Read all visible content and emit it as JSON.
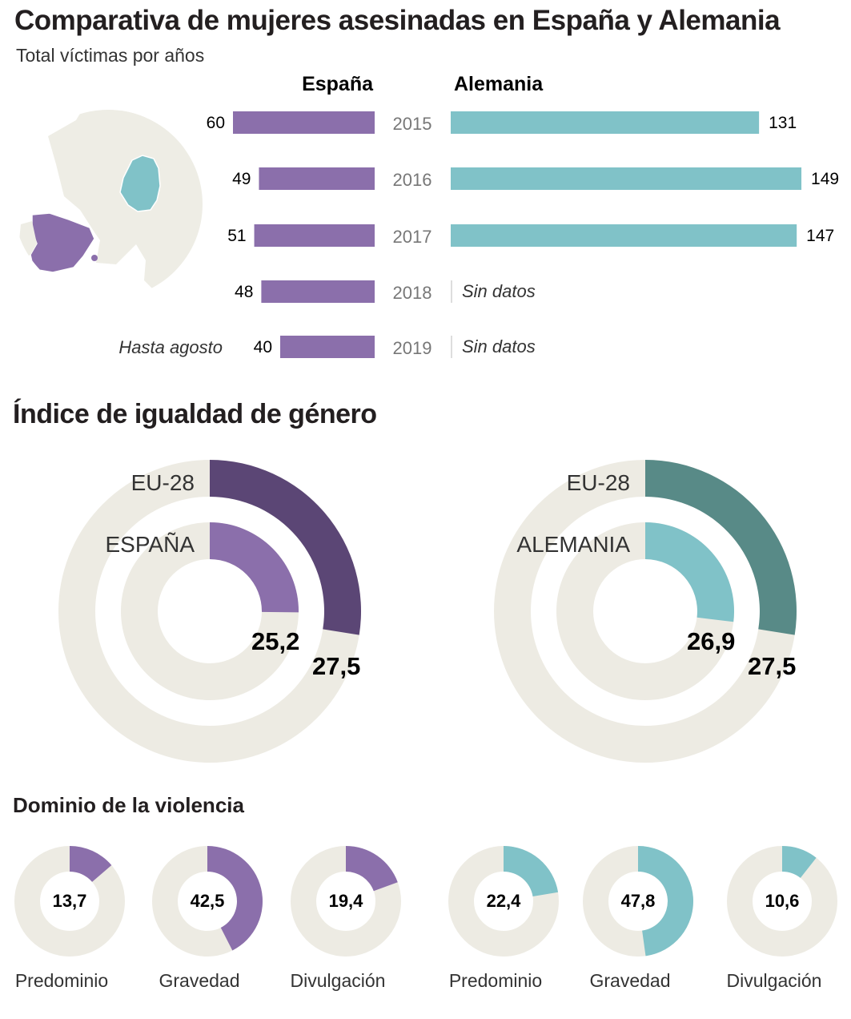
{
  "title": "Comparativa de mujeres asesinadas en España y Alemania",
  "subtitle": "Total víctimas por años",
  "colors": {
    "spain": "#8b6fab",
    "germany": "#80c2c8",
    "spain_dark": "#5b4675",
    "germany_dark": "#588a87",
    "track": "#edebe3",
    "map_land": "#eeede5"
  },
  "chart_data": [
    {
      "type": "bar",
      "name": "victimas",
      "columns": [
        "España",
        "Alemania"
      ],
      "categories": [
        "2015",
        "2016",
        "2017",
        "2018",
        "2019"
      ],
      "series": [
        {
          "name": "España",
          "values": [
            60,
            49,
            51,
            48,
            40
          ]
        },
        {
          "name": "Alemania",
          "values": [
            131,
            149,
            147,
            null,
            null
          ]
        }
      ],
      "missing_label": "Sin datos",
      "note_2019": "Hasta agosto"
    },
    {
      "type": "pie",
      "name": "indice",
      "title": "Índice de igualdad de género",
      "charts": [
        {
          "outer_label": "EU-28",
          "outer_value": 27.5,
          "outer_text": "27,5",
          "inner_label": "ESPAÑA",
          "inner_value": 25.2,
          "inner_text": "25,2"
        },
        {
          "outer_label": "EU-28",
          "outer_value": 27.5,
          "outer_text": "27,5",
          "inner_label": "ALEMANIA",
          "inner_value": 26.9,
          "inner_text": "26,9"
        }
      ]
    },
    {
      "type": "pie",
      "name": "dominio",
      "title": "Dominio de la violencia",
      "items": [
        {
          "country": "España",
          "label": "Predominio",
          "value": 13.7,
          "text": "13,7"
        },
        {
          "country": "España",
          "label": "Gravedad",
          "value": 42.5,
          "text": "42,5"
        },
        {
          "country": "España",
          "label": "Divulgación",
          "value": 19.4,
          "text": "19,4"
        },
        {
          "country": "Alemania",
          "label": "Predominio",
          "value": 22.4,
          "text": "22,4"
        },
        {
          "country": "Alemania",
          "label": "Gravedad",
          "value": 47.8,
          "text": "47,8"
        },
        {
          "country": "Alemania",
          "label": "Divulgación",
          "value": 10.6,
          "text": "10,6"
        }
      ]
    }
  ]
}
